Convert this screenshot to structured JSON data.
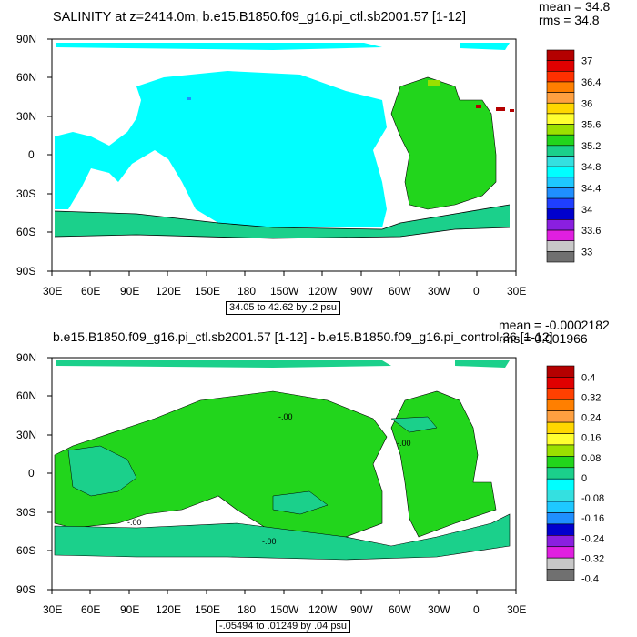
{
  "top": {
    "title": "SALINITY at z=2414.0m, b.e15.B1850.f09_g16.pi_ctl.sb2001.57 [1-12]",
    "mean": "mean = 34.8",
    "rms": "rms = 34.8",
    "range": "34.05 to 42.62 by .2 psu",
    "colorbar_labels": [
      "37",
      "36.4",
      "36",
      "35.6",
      "35.2",
      "34.8",
      "34.4",
      "34",
      "33.6",
      "33"
    ],
    "colors": [
      "#b40000",
      "#e00000",
      "#ff3000",
      "#ff7f00",
      "#ffa040",
      "#ffd700",
      "#ffff30",
      "#9be000",
      "#22d51c",
      "#1bd08b",
      "#34e0e0",
      "#00ffff",
      "#1ec8ff",
      "#1f8fff",
      "#1f3fff",
      "#0000cd",
      "#8a1fe0",
      "#e01fe0",
      "#c8c8c8",
      "#707070"
    ]
  },
  "bottom": {
    "title": "b.e15.B1850.f09_g16.pi_ctl.sb2001.57 [1-12] - b.e15.B1850.f09_g16.pi_control.36 [1-12]",
    "mean": "mean = -0.0002182",
    "rms": "rms = 0.001966",
    "range": "-.05494 to .01249 by .04 psu",
    "colorbar_labels": [
      "0.4",
      "0.32",
      "0.24",
      "0.16",
      "0.08",
      "0",
      "-0.08",
      "-0.16",
      "-0.24",
      "-0.32",
      "-0.4"
    ],
    "colors": [
      "#b40000",
      "#e00000",
      "#ff4000",
      "#ff7f00",
      "#ffa040",
      "#ffd700",
      "#ffff30",
      "#9be000",
      "#22d51c",
      "#1bd08b",
      "#00ffff",
      "#34e0e0",
      "#1ec8ff",
      "#1f8fff",
      "#0000cd",
      "#8a1fe0",
      "#e01fe0",
      "#c8c8c8",
      "#707070"
    ],
    "contour_label": "-.00"
  },
  "axes": {
    "x_ticks": [
      "30E",
      "60E",
      "90E",
      "120E",
      "150E",
      "180",
      "150W",
      "120W",
      "90W",
      "60W",
      "30W",
      "0",
      "30E"
    ],
    "y_ticks": [
      "90N",
      "60N",
      "30N",
      "0",
      "30S",
      "60S",
      "90S"
    ]
  }
}
